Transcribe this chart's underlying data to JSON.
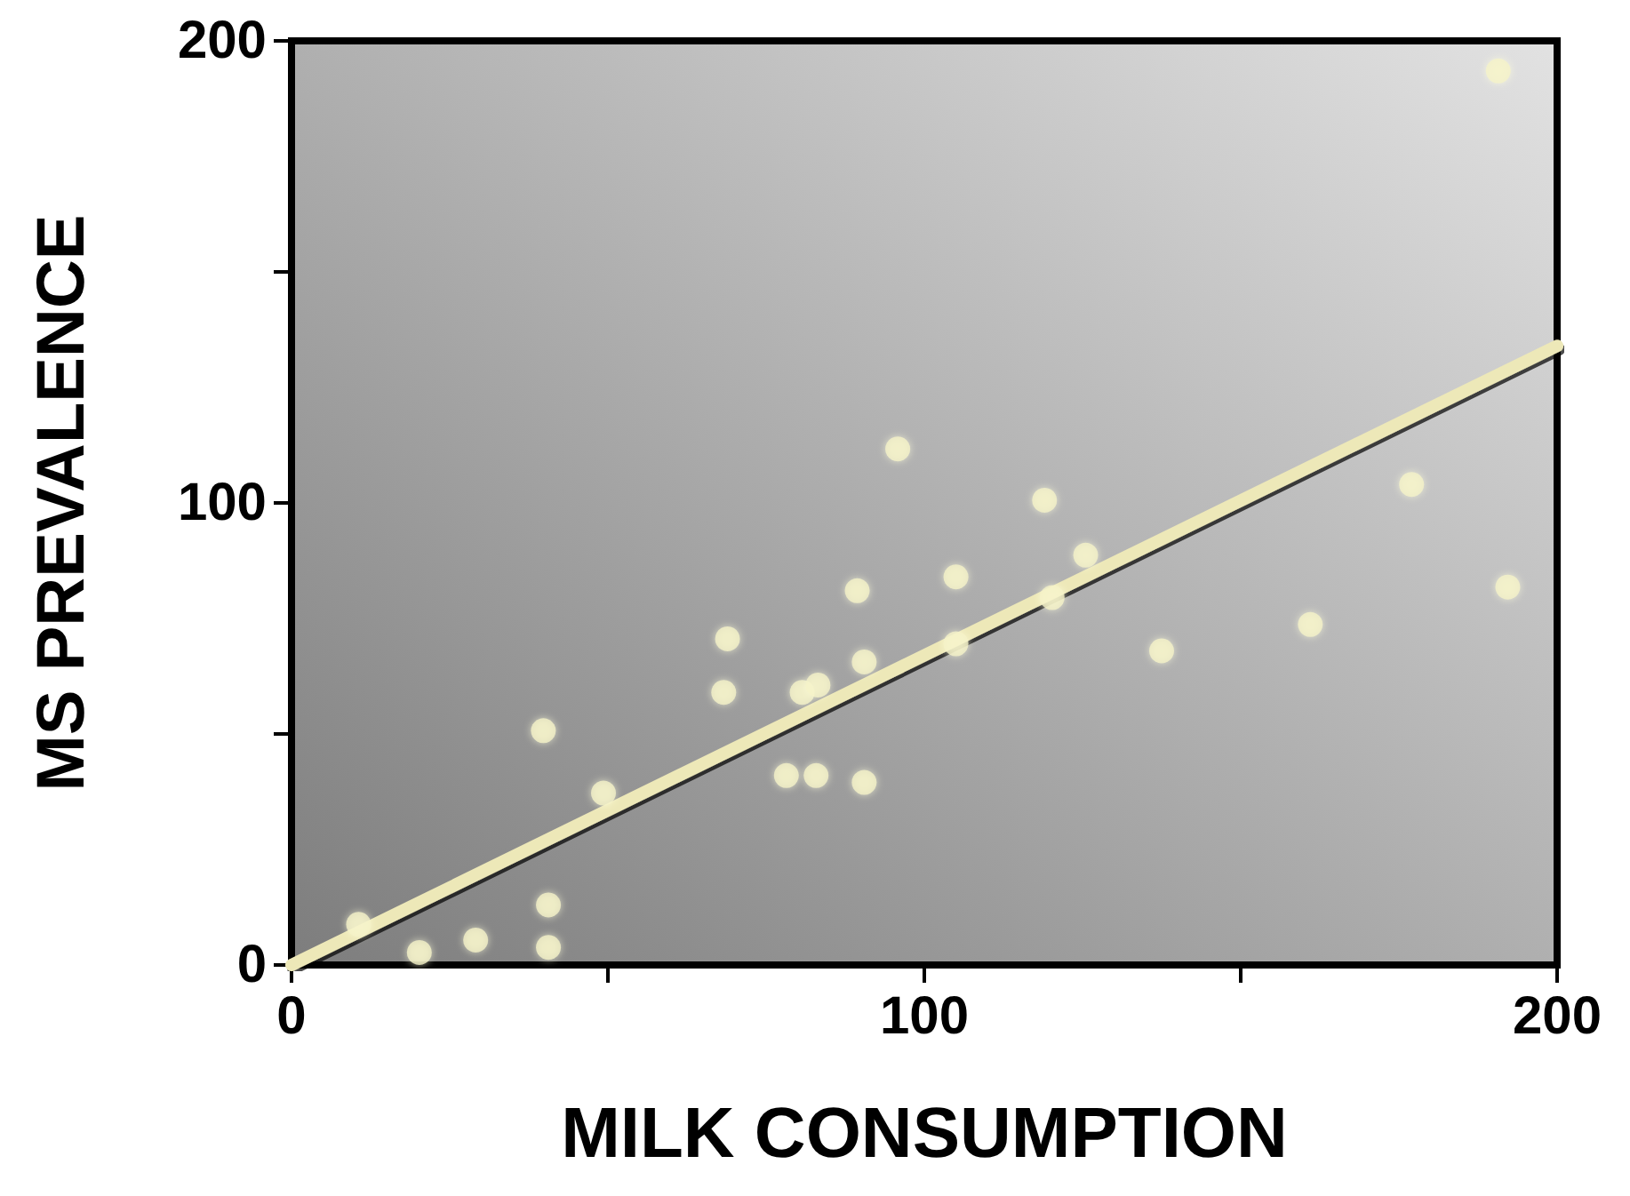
{
  "chart_data": {
    "type": "scatter",
    "xlabel": "MILK CONSUMPTION",
    "ylabel": "MS PREVALENCE",
    "xlim": [
      0,
      200
    ],
    "ylim": [
      0,
      200
    ],
    "xticks": [
      0,
      {
        "value": 50,
        "label": null
      },
      100,
      {
        "value": 150,
        "label": null
      },
      200
    ],
    "yticks": [
      0,
      {
        "value": 50,
        "label": null
      },
      100,
      {
        "value": 150,
        "label": null
      },
      200
    ],
    "grid": false,
    "marker": "circle",
    "series": [
      {
        "color": "#f5f2c8",
        "x": [
          10.6,
          20.2,
          29.1,
          40.6,
          40.6,
          39.8,
          49.3,
          68.9,
          68.3,
          78.2,
          80.7,
          83.2,
          82.9,
          89.4,
          90.5,
          90.5,
          95.8,
          105,
          105,
          119,
          120.2,
          125.5,
          137.5,
          161,
          177,
          192.2,
          190.7
        ],
        "values": [
          8.8,
          2.7,
          5.4,
          3.8,
          13,
          50.7,
          37.2,
          70.6,
          59,
          41,
          59,
          60.6,
          41,
          81,
          65.6,
          39.5,
          111.7,
          84,
          69.5,
          100.6,
          79.5,
          88.7,
          68,
          73.7,
          104,
          81.8,
          193.5
        ]
      },
      {
        "type": "line",
        "color": "#ede8b8",
        "x": [
          0,
          200
        ],
        "values": [
          0,
          134
        ],
        "marker": "none",
        "line_style": "solid"
      }
    ]
  }
}
